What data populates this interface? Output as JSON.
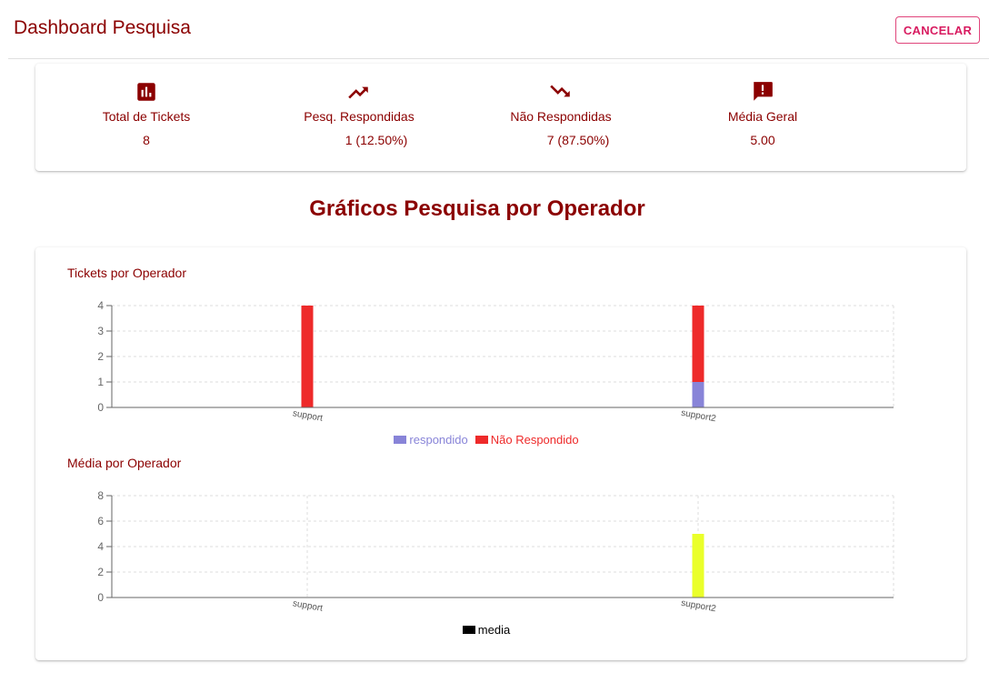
{
  "header": {
    "title": "Dashboard Pesquisa",
    "cancel_label": "CANCELAR"
  },
  "stats": [
    {
      "icon": "bar-chart-icon",
      "label": "Total de Tickets",
      "value": "8"
    },
    {
      "icon": "trending-up-icon",
      "label": "Pesq. Respondidas",
      "value": "1 (12.50%)"
    },
    {
      "icon": "trending-down-icon",
      "label": "Não Respondidas",
      "value": "7 (87.50%)"
    },
    {
      "icon": "feedback-icon",
      "label": "Média Geral",
      "value": "5.00"
    }
  ],
  "section_title": "Gráficos Pesquisa por Operador",
  "colors": {
    "primary": "#8b0000",
    "cancel": "#d81b60",
    "respondido": "#8884d8",
    "nao_respondido": "#ee2a2a",
    "media": "#eaff2a"
  },
  "chart_data": [
    {
      "type": "bar",
      "title": "Tickets por Operador",
      "categories": [
        "support",
        "support2"
      ],
      "stacked": true,
      "series": [
        {
          "name": "respondido",
          "values": [
            0,
            1
          ],
          "color": "#8884d8"
        },
        {
          "name": "Não Respondido",
          "values": [
            4,
            3
          ],
          "color": "#ee2a2a"
        }
      ],
      "ylim": [
        0,
        4
      ],
      "yticks": [
        0,
        1,
        2,
        3,
        4
      ],
      "grid": true,
      "legend": "bottom"
    },
    {
      "type": "bar",
      "title": "Média por Operador",
      "categories": [
        "support",
        "support2"
      ],
      "stacked": false,
      "series": [
        {
          "name": "media",
          "values": [
            0,
            5
          ],
          "color": "#eaff2a",
          "legend_color": "#000000"
        }
      ],
      "ylim": [
        0,
        8
      ],
      "yticks": [
        0,
        2,
        4,
        6,
        8
      ],
      "grid": true,
      "legend": "bottom"
    }
  ]
}
